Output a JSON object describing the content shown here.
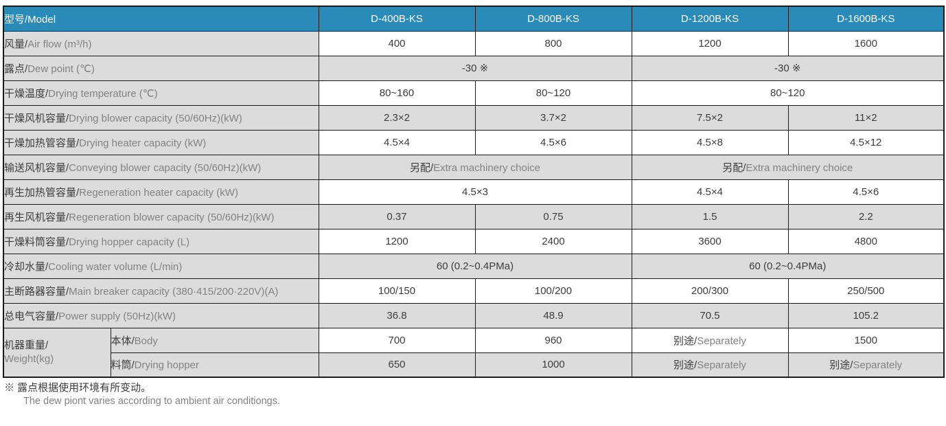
{
  "colors": {
    "header_bg": "#2A8AB8",
    "row_gray": "#DCDCDC",
    "row_white": "#FFFFFF",
    "border": "#1A1A1A",
    "text_dark": "#3C3C3C",
    "text_gray": "#828282",
    "header_text": "#FFFFFF"
  },
  "table": {
    "header": {
      "label": "型号/Model",
      "models": [
        "D-400B-KS",
        "D-800B-KS",
        "D-1200B-KS",
        "D-1600B-KS"
      ]
    },
    "rows": [
      {
        "name": "air-flow",
        "label": {
          "zh": "风量/",
          "en": "Air flow (m³/h)"
        },
        "shade": "white",
        "cells": [
          {
            "v": "400"
          },
          {
            "v": "800"
          },
          {
            "v": "1200"
          },
          {
            "v": "1600"
          }
        ]
      },
      {
        "name": "dew-point",
        "label": {
          "zh": "露点/",
          "en": "Dew point (℃)"
        },
        "shade": "gray",
        "cells": [
          {
            "v": "-30 ※",
            "span": 2
          },
          {
            "v": "-30 ※",
            "span": 2
          }
        ]
      },
      {
        "name": "drying-temperature",
        "label": {
          "zh": "干燥温度/",
          "en": "Drying temperature (℃)"
        },
        "shade": "white",
        "cells": [
          {
            "v": "80~160"
          },
          {
            "v": "80~120"
          },
          {
            "v": "80~120",
            "span": 2
          }
        ]
      },
      {
        "name": "drying-blower-capacity",
        "label": {
          "zh": "干燥风机容量/",
          "en": "Drying blower capacity (50/60Hz)(kW)"
        },
        "shade": "gray",
        "cells": [
          {
            "v": "2.3×2"
          },
          {
            "v": "3.7×2"
          },
          {
            "v": "7.5×2"
          },
          {
            "v": "11×2"
          }
        ]
      },
      {
        "name": "drying-heater-capacity",
        "label": {
          "zh": "干燥加热管容量/",
          "en": "Drying heater capacity (kW)"
        },
        "shade": "white",
        "cells": [
          {
            "v": "4.5×4"
          },
          {
            "v": "4.5×6"
          },
          {
            "v": "4.5×8"
          },
          {
            "v": "4.5×12"
          }
        ]
      },
      {
        "name": "conveying-blower-capacity",
        "label": {
          "zh": "输送风机容量/",
          "en": "Conveying blower capacity (50/60Hz)(kW)"
        },
        "shade": "gray",
        "cells": [
          {
            "zh": "另配/",
            "en": "Extra machinery choice",
            "span": 2
          },
          {
            "zh": "另配/",
            "en": "Extra machinery choice",
            "span": 2
          }
        ]
      },
      {
        "name": "regeneration-heater-capacity",
        "label": {
          "zh": "再生加热管容量/",
          "en": "Regeneration heater capacity (kW)"
        },
        "shade": "white",
        "cells": [
          {
            "v": "4.5×3",
            "span": 2
          },
          {
            "v": "4.5×4"
          },
          {
            "v": "4.5×6"
          }
        ]
      },
      {
        "name": "regeneration-blower-capacity",
        "label": {
          "zh": "再生风机容量/",
          "en": "Regeneration blower capacity (50/60Hz)(kW)"
        },
        "shade": "gray",
        "cells": [
          {
            "v": "0.37"
          },
          {
            "v": "0.75"
          },
          {
            "v": "1.5"
          },
          {
            "v": "2.2"
          }
        ]
      },
      {
        "name": "drying-hopper-capacity",
        "label": {
          "zh": "干燥料筒容量/",
          "en": "Drying hopper capacity (L)"
        },
        "shade": "white",
        "cells": [
          {
            "v": "1200"
          },
          {
            "v": "2400"
          },
          {
            "v": "3600"
          },
          {
            "v": "4800"
          }
        ]
      },
      {
        "name": "cooling-water-volume",
        "label": {
          "zh": "冷却水量/",
          "en": "Cooling water volume (L/min)"
        },
        "shade": "gray",
        "cells": [
          {
            "v": "60 (0.2~0.4PMa)",
            "span": 2
          },
          {
            "v": "60 (0.2~0.4PMa)",
            "span": 2
          }
        ]
      },
      {
        "name": "main-breaker-capacity",
        "label": {
          "zh": "主断路器容量/",
          "en": "Main breaker capacity (380·415/200·220V)(A)"
        },
        "shade": "white",
        "cells": [
          {
            "v": "100/150"
          },
          {
            "v": "100/200"
          },
          {
            "v": "200/300"
          },
          {
            "v": "250/500"
          }
        ]
      },
      {
        "name": "power-supply",
        "label": {
          "zh": "总电气容量/",
          "en": "Power supply (50Hz)(kW)"
        },
        "shade": "gray",
        "cells": [
          {
            "v": "36.8"
          },
          {
            "v": "48.9"
          },
          {
            "v": "70.5"
          },
          {
            "v": "105.2"
          }
        ]
      },
      {
        "name": "weight-body",
        "group": {
          "line1": "机器重量/",
          "line2": "Weight(kg)"
        },
        "sublabel": {
          "zh": "本体/",
          "en": "Body"
        },
        "shade": "white",
        "cells": [
          {
            "v": "700"
          },
          {
            "v": "960"
          },
          {
            "zh": "别途/",
            "en": "Separately"
          },
          {
            "v": "1500"
          }
        ]
      },
      {
        "name": "weight-drying-hopper",
        "sublabel": {
          "zh": "料筒/",
          "en": "Drying hopper"
        },
        "shade": "gray",
        "cells": [
          {
            "v": "650"
          },
          {
            "v": "1000"
          },
          {
            "zh": "别途/",
            "en": "Separately"
          },
          {
            "zh": "别途/",
            "en": "Separately"
          }
        ]
      }
    ]
  },
  "footnote": {
    "chinese": "※ 露点根据使用环境有所变动。",
    "english": "The dew piont varies according to ambient air conditiongs."
  },
  "chart_data": {
    "type": "table",
    "columns": [
      "型号/Model",
      "D-400B-KS",
      "D-800B-KS",
      "D-1200B-KS",
      "D-1600B-KS"
    ],
    "rows": [
      [
        "风量/Air flow (m³/h)",
        "400",
        "800",
        "1200",
        "1600"
      ],
      [
        "露点/Dew point (℃)",
        "-30 ※",
        "-30 ※",
        "-30 ※",
        "-30 ※"
      ],
      [
        "干燥温度/Drying temperature (℃)",
        "80~160",
        "80~120",
        "80~120",
        "80~120"
      ],
      [
        "干燥风机容量/Drying blower capacity (50/60Hz)(kW)",
        "2.3×2",
        "3.7×2",
        "7.5×2",
        "11×2"
      ],
      [
        "干燥加热管容量/Drying heater capacity (kW)",
        "4.5×4",
        "4.5×6",
        "4.5×8",
        "4.5×12"
      ],
      [
        "输送风机容量/Conveying blower capacity (50/60Hz)(kW)",
        "另配/Extra machinery choice",
        "另配/Extra machinery choice",
        "另配/Extra machinery choice",
        "另配/Extra machinery choice"
      ],
      [
        "再生加热管容量/Regeneration heater capacity (kW)",
        "4.5×3",
        "4.5×3",
        "4.5×4",
        "4.5×6"
      ],
      [
        "再生风机容量/Regeneration blower capacity (50/60Hz)(kW)",
        "0.37",
        "0.75",
        "1.5",
        "2.2"
      ],
      [
        "干燥料筒容量/Drying hopper capacity (L)",
        "1200",
        "2400",
        "3600",
        "4800"
      ],
      [
        "冷却水量/Cooling water volume (L/min)",
        "60 (0.2~0.4PMa)",
        "60 (0.2~0.4PMa)",
        "60 (0.2~0.4PMa)",
        "60 (0.2~0.4PMa)"
      ],
      [
        "主断路器容量/Main breaker capacity (380·415/200·220V)(A)",
        "100/150",
        "100/200",
        "200/300",
        "250/500"
      ],
      [
        "总电气容量/Power supply (50Hz)(kW)",
        "36.8",
        "48.9",
        "70.5",
        "105.2"
      ],
      [
        "机器重量/Weight(kg) — 本体/Body",
        "700",
        "960",
        "别途/Separately",
        "1500"
      ],
      [
        "机器重量/Weight(kg) — 料筒/Drying hopper",
        "650",
        "1000",
        "别途/Separately",
        "别途/Separately"
      ]
    ]
  }
}
